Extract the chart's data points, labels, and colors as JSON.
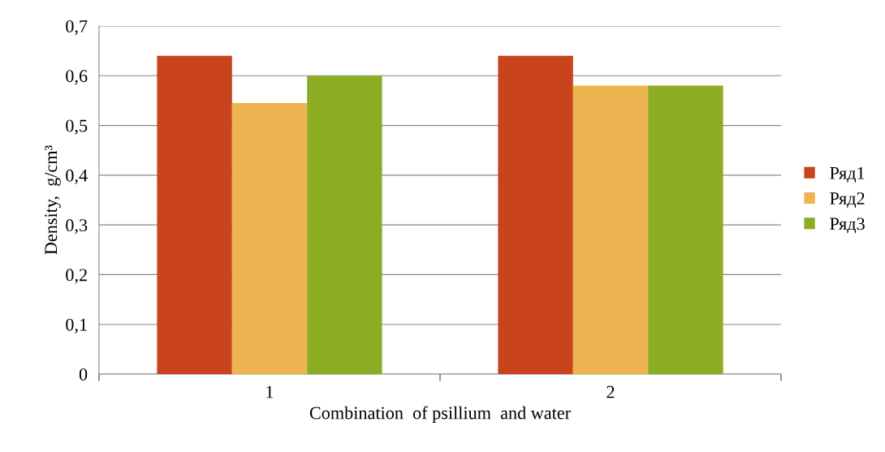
{
  "chart_data": {
    "type": "bar",
    "xlabel": "Combination  of psillium  and water",
    "ylabel": "Density,  g/cm³",
    "categories": [
      "1",
      "2"
    ],
    "series": [
      {
        "name": "Ряд1",
        "color": "#c9441c",
        "values": [
          0.64,
          0.64
        ]
      },
      {
        "name": "Ряд2",
        "color": "#efb452",
        "values": [
          0.545,
          0.58
        ]
      },
      {
        "name": "Ряд3",
        "color": "#8cac24",
        "values": [
          0.6,
          0.58
        ]
      }
    ],
    "ylim": [
      0,
      0.7
    ],
    "yticks": [
      0,
      {
        "value": 0.1,
        "label": "0,1"
      },
      {
        "value": 0.2,
        "label": "0,2"
      },
      {
        "value": 0.3,
        "label": "0,3"
      },
      {
        "value": 0.4,
        "label": "0,4"
      },
      {
        "value": 0.5,
        "label": "0,5"
      },
      {
        "value": 0.6,
        "label": "0,6"
      },
      {
        "value": 0.7,
        "label": "0,7"
      }
    ],
    "grid": "y",
    "legend": "right"
  }
}
